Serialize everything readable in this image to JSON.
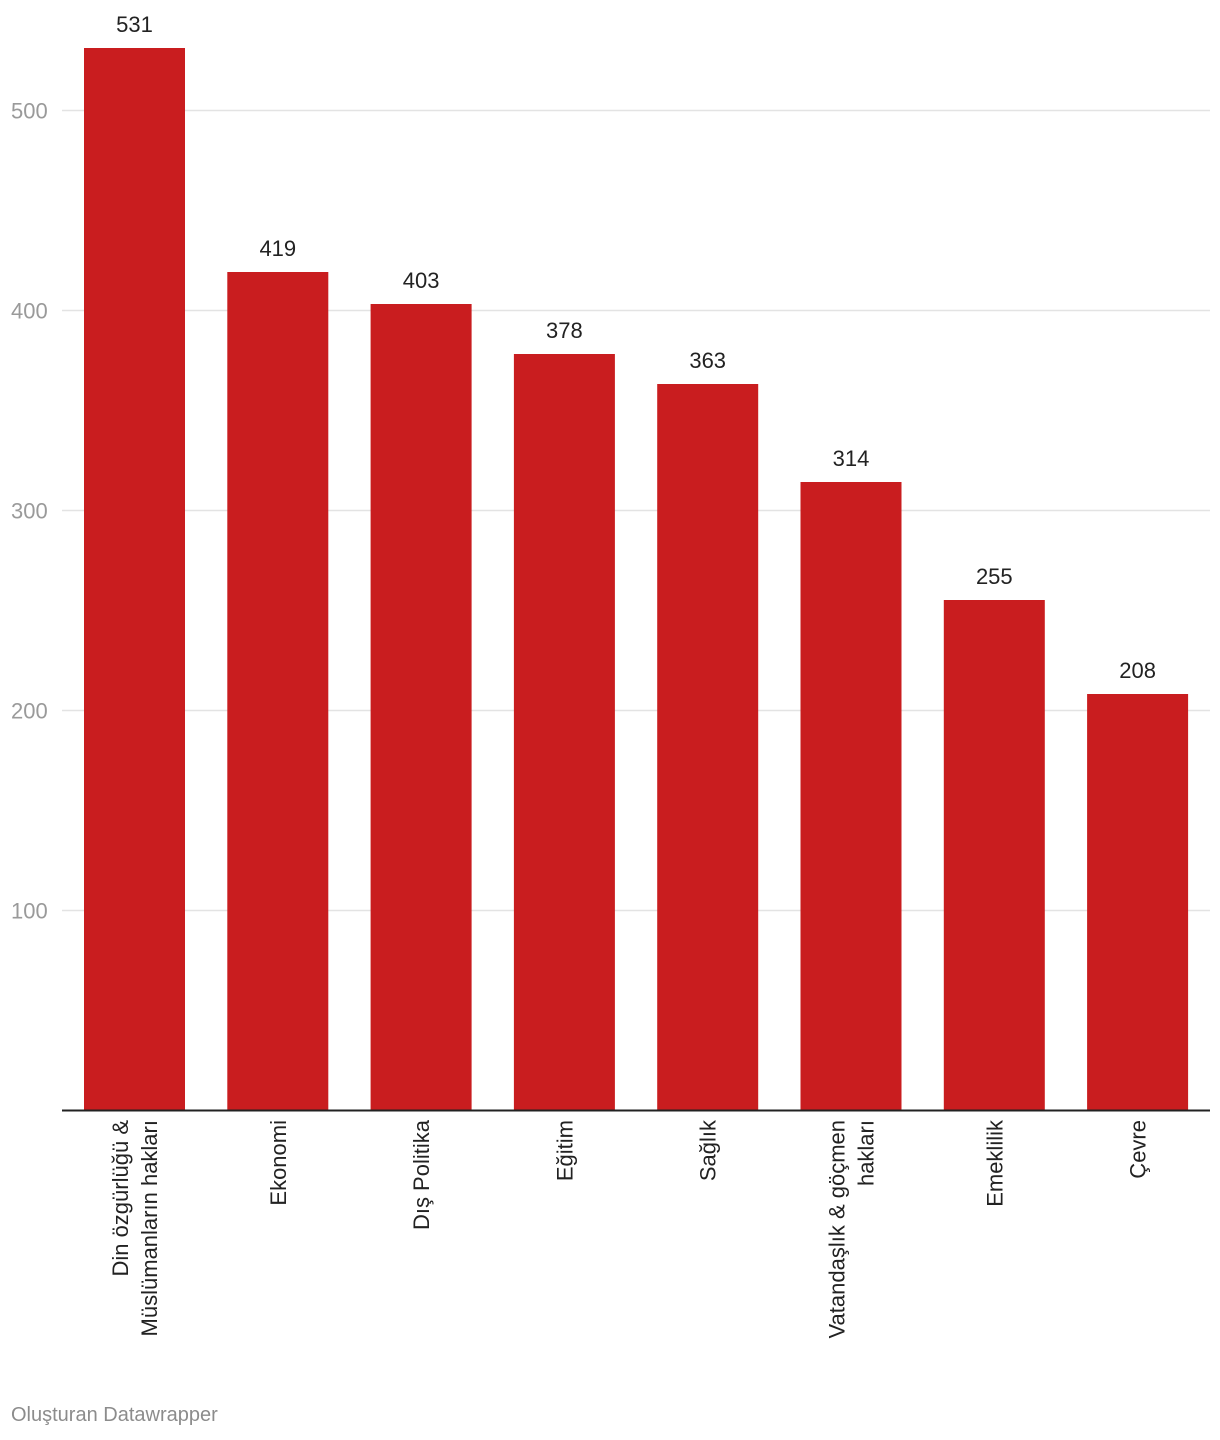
{
  "chart_data": {
    "type": "bar",
    "categories": [
      [
        "Din özgürlüğü &",
        "Müslümanların hakları"
      ],
      [
        "Ekonomi"
      ],
      [
        "Dış Politika"
      ],
      [
        "Eğitim"
      ],
      [
        "Sağlık"
      ],
      [
        "Vatandaşlık & göçmen",
        "hakları"
      ],
      [
        "Emeklilik"
      ],
      [
        "Çevre"
      ]
    ],
    "values": [
      531,
      419,
      403,
      378,
      363,
      314,
      255,
      208
    ],
    "value_labels": [
      "531",
      "419",
      "403",
      "378",
      "363",
      "314",
      "255",
      "208"
    ],
    "y_ticks": [
      100,
      200,
      300,
      400,
      500
    ],
    "y_tick_labels": [
      "100",
      "200",
      "300",
      "400",
      "500"
    ],
    "ylim": [
      0,
      531
    ],
    "grid": true,
    "bar_color": "#c91d1f",
    "gridline_color": "#e3e3e3",
    "baseline_color": "#222222",
    "title": "",
    "xlabel": "",
    "ylabel": ""
  },
  "footer": {
    "credit": "Oluşturan Datawrapper"
  }
}
